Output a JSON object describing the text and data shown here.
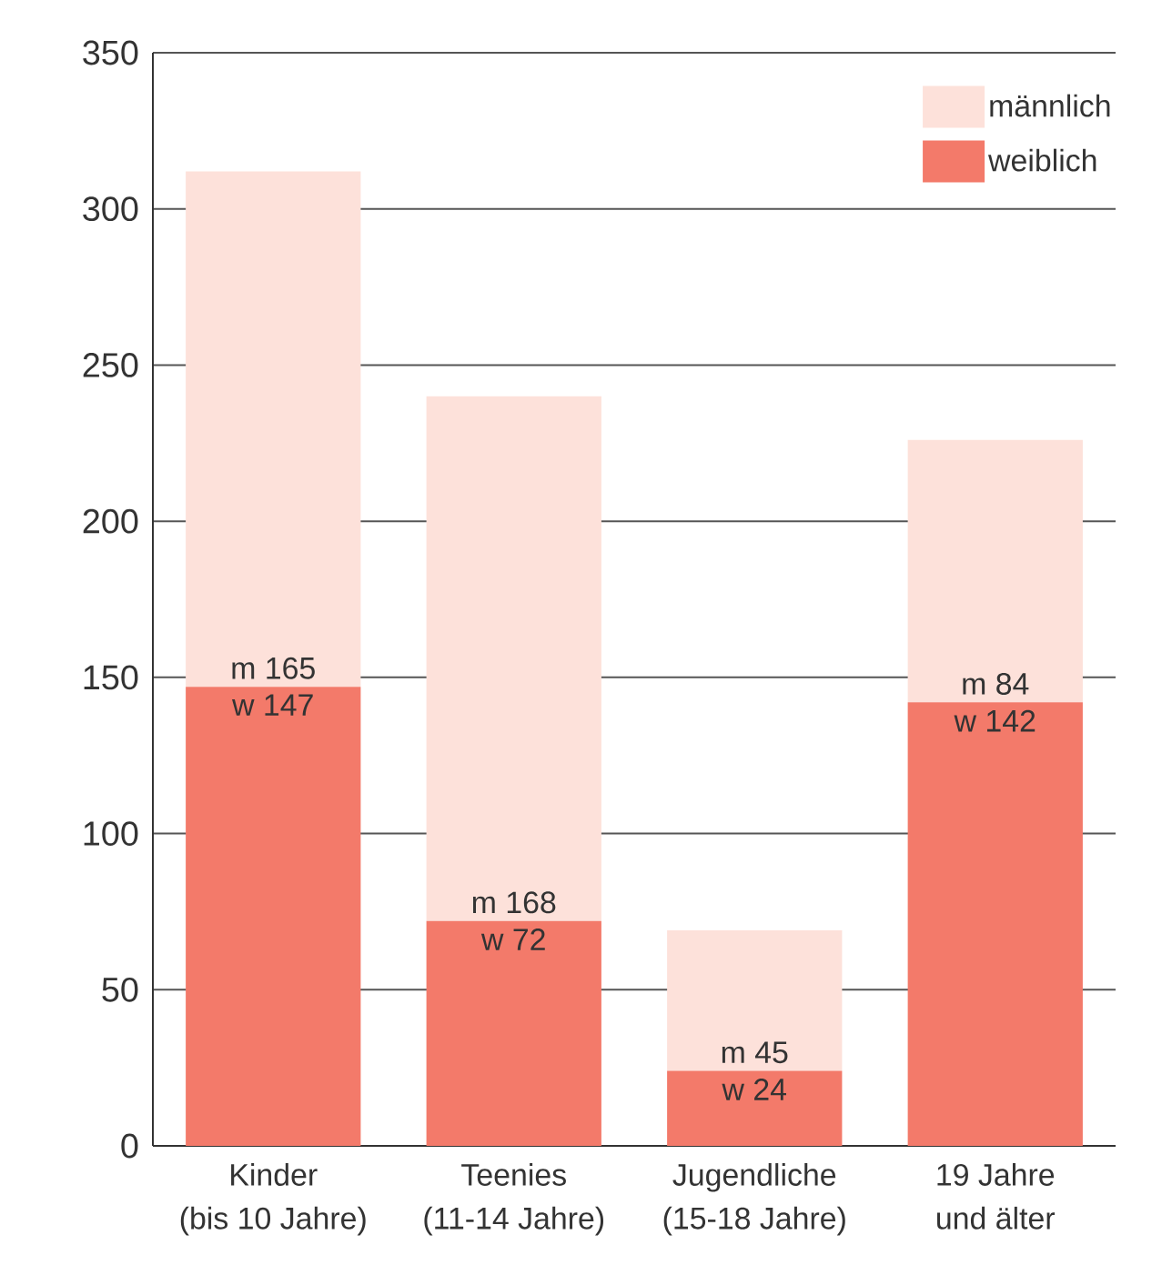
{
  "chart_data": {
    "type": "bar",
    "stacked": true,
    "categories": [
      "Kinder\n(bis 10 Jahre)",
      "Teenies\n(11-14 Jahre)",
      "Jugendliche\n(15-18 Jahre)",
      "19 Jahre\nund älter"
    ],
    "series": [
      {
        "name": "weiblich",
        "color": "#f37a6a",
        "values": [
          147,
          72,
          24,
          142
        ],
        "value_labels": [
          "w 147",
          "w 72",
          "w 24",
          "w 142"
        ]
      },
      {
        "name": "männlich",
        "color": "#fde1da",
        "values": [
          165,
          168,
          45,
          84
        ],
        "value_labels": [
          "m 165",
          "m 168",
          "m 45",
          "m 84"
        ]
      }
    ],
    "ylim": [
      0,
      350
    ],
    "yticks": [
      0,
      50,
      100,
      150,
      200,
      250,
      300,
      350
    ],
    "grid": "y",
    "legend": "top right"
  }
}
